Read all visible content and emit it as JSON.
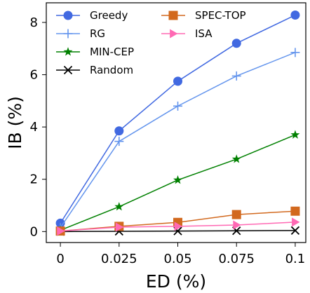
{
  "chart_data": {
    "type": "line",
    "xlabel": "ED (%)",
    "ylabel": "IB (%)",
    "x": [
      0,
      0.025,
      0.05,
      0.075,
      0.1
    ],
    "x_tick_labels": [
      "0",
      "0.025",
      "0.05",
      "0.075",
      "0.1"
    ],
    "xlim": [
      -0.006,
      0.1045
    ],
    "ylim": [
      -0.42,
      8.75
    ],
    "y_ticks": [
      0,
      2,
      4,
      6,
      8
    ],
    "y_tick_labels": [
      "0",
      "2",
      "4",
      "6",
      "8"
    ],
    "grid": false,
    "legend_position": "top-left",
    "series": [
      {
        "name": "Greedy",
        "values": [
          0.32,
          3.85,
          5.75,
          7.2,
          8.28
        ],
        "color": "#4169E1",
        "marker": "circle"
      },
      {
        "name": "RG",
        "values": [
          0.15,
          3.45,
          4.8,
          5.95,
          6.85
        ],
        "color": "#6495ED",
        "marker": "plus"
      },
      {
        "name": "MIN-CEP",
        "values": [
          0.05,
          0.95,
          1.97,
          2.77,
          3.7
        ],
        "color": "#008000",
        "marker": "star"
      },
      {
        "name": "Random",
        "values": [
          0.0,
          0.01,
          0.02,
          0.03,
          0.04
        ],
        "color": "#000000",
        "marker": "x"
      },
      {
        "name": "SPEC-TOP",
        "values": [
          0.02,
          0.2,
          0.35,
          0.65,
          0.78
        ],
        "color": "#D2691E",
        "marker": "square"
      },
      {
        "name": "ISA",
        "values": [
          0.02,
          0.17,
          0.2,
          0.25,
          0.36
        ],
        "color": "#FF69B4",
        "marker": "triangle-right"
      }
    ]
  }
}
